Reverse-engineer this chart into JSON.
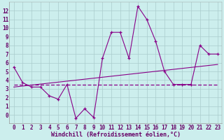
{
  "xlabel": "Windchill (Refroidissement éolien,°C)",
  "line1_x": [
    0,
    1,
    2,
    3,
    4,
    5,
    6,
    7,
    8,
    9,
    10,
    11,
    12,
    13,
    14,
    15,
    16,
    17,
    18,
    19,
    20,
    21,
    22,
    23
  ],
  "line1_y": [
    5.5,
    3.7,
    3.2,
    3.2,
    2.2,
    1.8,
    3.5,
    -0.4,
    0.7,
    -0.3,
    6.5,
    9.5,
    9.5,
    6.5,
    12.5,
    11.0,
    8.5,
    5.0,
    3.5,
    3.5,
    3.5,
    8.0,
    7.0,
    7.0
  ],
  "line2_x": [
    0,
    23
  ],
  "line2_y": [
    3.2,
    5.8
  ],
  "line3_x": [
    0,
    23
  ],
  "line3_y": [
    3.5,
    3.5
  ],
  "line_color": "#880088",
  "bg_color": "#cceeed",
  "grid_color": "#aacccc",
  "axis_color": "#660066",
  "ylim": [
    -1,
    13
  ],
  "xlim": [
    -0.5,
    23.5
  ],
  "yticks": [
    0,
    1,
    2,
    3,
    4,
    5,
    6,
    7,
    8,
    9,
    10,
    11,
    12
  ],
  "xticks": [
    0,
    1,
    2,
    3,
    4,
    5,
    6,
    7,
    8,
    9,
    10,
    11,
    12,
    13,
    14,
    15,
    16,
    17,
    18,
    19,
    20,
    21,
    22,
    23
  ],
  "tick_fontsize": 5.5,
  "xlabel_fontsize": 6.0
}
